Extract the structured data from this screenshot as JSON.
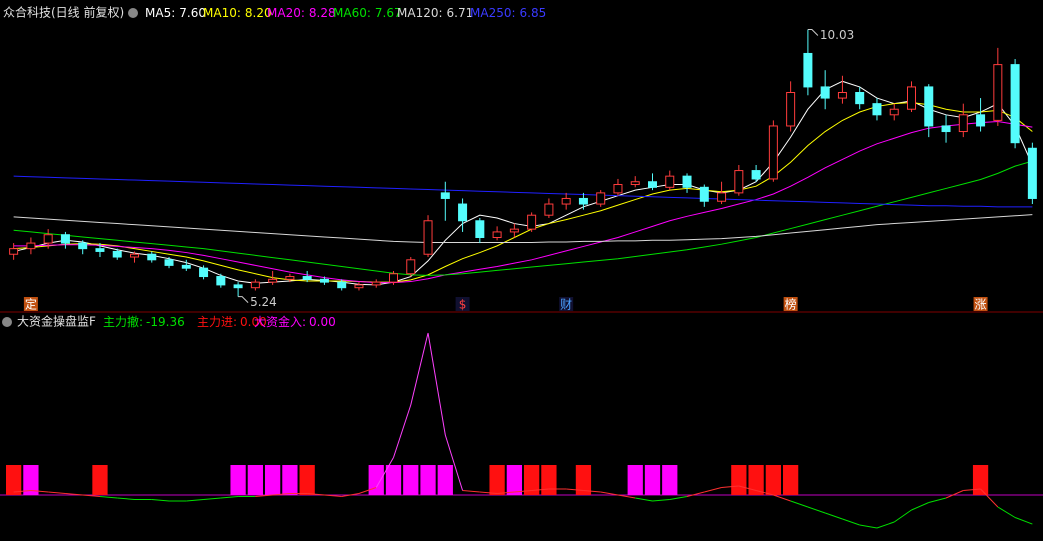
{
  "chart_data": [
    {
      "type": "candlestick",
      "title": "众合科技(日线 前复权)",
      "categories": [
        null,
        "定",
        null,
        null,
        null,
        null,
        null,
        null,
        null,
        null,
        null,
        null,
        null,
        null,
        null,
        null,
        null,
        null,
        null,
        null,
        null,
        null,
        null,
        null,
        null,
        null,
        "$",
        null,
        null,
        null,
        null,
        null,
        "财",
        null,
        null,
        null,
        null,
        null,
        null,
        null,
        null,
        null,
        null,
        null,
        null,
        "榜",
        null,
        null,
        null,
        null,
        null,
        null,
        null,
        null,
        null,
        null,
        "涨",
        null,
        null,
        null
      ],
      "open": [
        6.0,
        6.1,
        6.2,
        6.35,
        6.2,
        6.1,
        6.05,
        5.95,
        6.0,
        5.9,
        5.8,
        5.75,
        5.6,
        5.45,
        5.4,
        5.5,
        5.55,
        5.6,
        5.55,
        5.5,
        5.4,
        5.45,
        5.5,
        5.65,
        6.0,
        7.1,
        6.9,
        6.6,
        6.3,
        6.4,
        6.45,
        6.7,
        6.9,
        7.0,
        6.9,
        7.1,
        7.25,
        7.3,
        7.2,
        7.4,
        7.2,
        6.95,
        7.1,
        7.5,
        7.35,
        8.3,
        9.6,
        9.0,
        8.8,
        8.9,
        8.7,
        8.5,
        8.6,
        9.0,
        8.3,
        8.2,
        8.5,
        8.4,
        9.4,
        7.9
      ],
      "close": [
        6.1,
        6.2,
        6.35,
        6.2,
        6.1,
        6.05,
        5.95,
        6.0,
        5.9,
        5.8,
        5.75,
        5.6,
        5.45,
        5.4,
        5.5,
        5.55,
        5.6,
        5.55,
        5.5,
        5.4,
        5.45,
        5.5,
        5.65,
        5.9,
        6.6,
        7.0,
        6.6,
        6.3,
        6.4,
        6.45,
        6.7,
        6.9,
        7.0,
        6.9,
        7.1,
        7.25,
        7.3,
        7.2,
        7.4,
        7.2,
        6.95,
        7.1,
        7.5,
        7.35,
        8.3,
        8.9,
        9.0,
        8.8,
        8.9,
        8.7,
        8.5,
        8.6,
        9.0,
        8.3,
        8.2,
        8.5,
        8.3,
        9.4,
        8.0,
        7.0
      ],
      "high": [
        6.2,
        6.3,
        6.45,
        6.4,
        6.25,
        6.2,
        6.1,
        6.05,
        6.05,
        5.95,
        5.9,
        5.8,
        5.65,
        5.5,
        5.55,
        5.7,
        5.65,
        5.7,
        5.6,
        5.55,
        5.5,
        5.55,
        5.7,
        5.95,
        6.7,
        7.3,
        7.0,
        6.65,
        6.5,
        6.55,
        6.75,
        7.0,
        7.1,
        7.1,
        7.15,
        7.35,
        7.4,
        7.45,
        7.5,
        7.45,
        7.25,
        7.3,
        7.6,
        7.6,
        8.4,
        9.1,
        10.03,
        9.3,
        9.2,
        9.0,
        8.8,
        8.7,
        9.1,
        9.05,
        8.5,
        8.7,
        8.8,
        9.7,
        9.5,
        8.0
      ],
      "low": [
        5.9,
        6.0,
        6.1,
        6.1,
        6.0,
        5.95,
        5.9,
        5.85,
        5.85,
        5.75,
        5.7,
        5.55,
        5.4,
        5.24,
        5.35,
        5.45,
        5.5,
        5.5,
        5.45,
        5.35,
        5.35,
        5.4,
        5.45,
        5.6,
        5.95,
        6.6,
        6.4,
        6.2,
        6.25,
        6.3,
        6.4,
        6.65,
        6.8,
        6.8,
        6.85,
        7.05,
        7.2,
        7.15,
        7.15,
        7.1,
        6.85,
        6.9,
        7.05,
        7.3,
        7.3,
        8.2,
        8.85,
        8.6,
        8.7,
        8.6,
        8.4,
        8.4,
        8.55,
        8.1,
        8.0,
        8.1,
        8.2,
        8.3,
        7.9,
        6.9
      ],
      "up_color": "#ff3c3c",
      "down_color": "#54fcfc",
      "ylim": [
        5.0,
        10.2
      ],
      "annotations": [
        {
          "label": "10.03",
          "value": 10.03,
          "at": "high"
        },
        {
          "label": "5.24",
          "value": 5.24,
          "at": "low"
        }
      ],
      "series": [
        {
          "name": "MA5:",
          "last_label": "7.60",
          "color": "#ffffff",
          "values": [
            6.05,
            6.12,
            6.2,
            6.25,
            6.22,
            6.15,
            6.08,
            6.02,
            5.98,
            5.92,
            5.85,
            5.75,
            5.62,
            5.52,
            5.48,
            5.5,
            5.52,
            5.55,
            5.53,
            5.5,
            5.46,
            5.45,
            5.5,
            5.6,
            5.88,
            6.25,
            6.55,
            6.7,
            6.65,
            6.55,
            6.5,
            6.55,
            6.7,
            6.85,
            6.95,
            7.05,
            7.15,
            7.2,
            7.25,
            7.25,
            7.15,
            7.1,
            7.15,
            7.3,
            7.65,
            8.1,
            8.6,
            8.95,
            9.1,
            9.0,
            8.8,
            8.7,
            8.75,
            8.6,
            8.5,
            8.45,
            8.55,
            8.7,
            8.3,
            7.6
          ]
        },
        {
          "name": "MA10:",
          "last_label": "8.20",
          "color": "#ffff00",
          "values": [
            6.1,
            6.12,
            6.15,
            6.18,
            6.19,
            6.18,
            6.15,
            6.1,
            6.05,
            6.0,
            5.95,
            5.88,
            5.8,
            5.72,
            5.65,
            5.58,
            5.54,
            5.52,
            5.52,
            5.52,
            5.51,
            5.5,
            5.5,
            5.54,
            5.63,
            5.78,
            5.92,
            6.03,
            6.15,
            6.3,
            6.45,
            6.55,
            6.62,
            6.7,
            6.78,
            6.88,
            6.98,
            7.08,
            7.15,
            7.18,
            7.15,
            7.12,
            7.15,
            7.22,
            7.4,
            7.65,
            7.95,
            8.2,
            8.4,
            8.55,
            8.65,
            8.7,
            8.72,
            8.68,
            8.6,
            8.55,
            8.55,
            8.58,
            8.45,
            8.2
          ]
        },
        {
          "name": "MA20:",
          "last_label": "8.28",
          "color": "#ff00ff",
          "values": [
            6.15,
            6.15,
            6.16,
            6.17,
            6.17,
            6.16,
            6.14,
            6.12,
            6.1,
            6.07,
            6.03,
            5.98,
            5.92,
            5.86,
            5.8,
            5.74,
            5.68,
            5.63,
            5.58,
            5.54,
            5.51,
            5.49,
            5.49,
            5.51,
            5.56,
            5.63,
            5.68,
            5.73,
            5.78,
            5.84,
            5.9,
            5.98,
            6.06,
            6.14,
            6.22,
            6.3,
            6.4,
            6.5,
            6.6,
            6.68,
            6.75,
            6.82,
            6.9,
            6.98,
            7.08,
            7.22,
            7.38,
            7.55,
            7.7,
            7.85,
            7.98,
            8.08,
            8.18,
            8.26,
            8.3,
            8.33,
            8.36,
            8.38,
            8.33,
            8.28
          ]
        },
        {
          "name": "MA60:",
          "last_label": "7.67",
          "color": "#00e000",
          "values": [
            6.43,
            6.4,
            6.37,
            6.34,
            6.31,
            6.28,
            6.25,
            6.22,
            6.19,
            6.16,
            6.13,
            6.1,
            6.06,
            6.02,
            5.98,
            5.94,
            5.9,
            5.86,
            5.82,
            5.78,
            5.74,
            5.7,
            5.66,
            5.63,
            5.62,
            5.63,
            5.65,
            5.68,
            5.71,
            5.74,
            5.77,
            5.8,
            5.83,
            5.86,
            5.89,
            5.92,
            5.96,
            6.0,
            6.04,
            6.08,
            6.13,
            6.18,
            6.24,
            6.3,
            6.38,
            6.46,
            6.54,
            6.62,
            6.7,
            6.78,
            6.86,
            6.94,
            7.02,
            7.1,
            7.18,
            7.26,
            7.34,
            7.45,
            7.58,
            7.67
          ]
        },
        {
          "name": "MA120:",
          "last_label": "6.71",
          "color": "#d8d8d8",
          "values": [
            6.67,
            6.65,
            6.63,
            6.61,
            6.59,
            6.57,
            6.55,
            6.53,
            6.51,
            6.49,
            6.47,
            6.45,
            6.43,
            6.41,
            6.39,
            6.37,
            6.35,
            6.33,
            6.31,
            6.29,
            6.27,
            6.25,
            6.23,
            6.22,
            6.21,
            6.21,
            6.21,
            6.21,
            6.21,
            6.21,
            6.21,
            6.22,
            6.22,
            6.23,
            6.23,
            6.24,
            6.24,
            6.25,
            6.25,
            6.26,
            6.27,
            6.28,
            6.3,
            6.32,
            6.35,
            6.38,
            6.41,
            6.44,
            6.47,
            6.5,
            6.53,
            6.55,
            6.57,
            6.59,
            6.61,
            6.63,
            6.65,
            6.67,
            6.69,
            6.71
          ]
        },
        {
          "name": "MA250:",
          "last_label": "6.85",
          "color": "#2020ff",
          "values": [
            7.4,
            7.39,
            7.38,
            7.37,
            7.36,
            7.35,
            7.34,
            7.33,
            7.32,
            7.31,
            7.3,
            7.29,
            7.28,
            7.27,
            7.26,
            7.25,
            7.24,
            7.23,
            7.22,
            7.21,
            7.2,
            7.19,
            7.18,
            7.17,
            7.16,
            7.15,
            7.14,
            7.13,
            7.12,
            7.11,
            7.1,
            7.09,
            7.08,
            7.07,
            7.06,
            7.05,
            7.04,
            7.03,
            7.02,
            7.01,
            7.0,
            6.99,
            6.98,
            6.97,
            6.96,
            6.95,
            6.94,
            6.93,
            6.92,
            6.91,
            6.9,
            6.89,
            6.88,
            6.87,
            6.87,
            6.86,
            6.86,
            6.85,
            6.85,
            6.85
          ]
        }
      ]
    },
    {
      "type": "combo",
      "title": "大资金操盘监F",
      "ylim": [
        -30,
        110
      ],
      "series": [
        {
          "name": "主力撤:",
          "last_label": "-19.36",
          "type": "line",
          "color": "#00e000",
          "values": [
            2,
            3,
            2,
            1,
            0,
            -1,
            -2,
            -3,
            -3,
            -4,
            -4,
            -3,
            -2,
            -1,
            -1,
            0,
            1,
            1,
            0,
            -1,
            1,
            5,
            25,
            60,
            108,
            40,
            3,
            2,
            1,
            2,
            3,
            4,
            4,
            3,
            2,
            0,
            -2,
            -4,
            -3,
            -1,
            2,
            5,
            6,
            3,
            0,
            -4,
            -8,
            -12,
            -16,
            -20,
            -22,
            -18,
            -10,
            -5,
            -2,
            3,
            4,
            -8,
            -15,
            -19.36
          ]
        },
        {
          "name": "主力进:",
          "last_label": "0.00",
          "type": "bar",
          "color": "#ff1010",
          "values": [
            20,
            0,
            0,
            0,
            0,
            20,
            0,
            0,
            0,
            0,
            0,
            0,
            0,
            0,
            0,
            0,
            0,
            20,
            0,
            0,
            0,
            0,
            0,
            0,
            0,
            0,
            0,
            0,
            20,
            0,
            20,
            20,
            0,
            20,
            0,
            0,
            0,
            0,
            0,
            0,
            0,
            0,
            20,
            20,
            20,
            20,
            0,
            0,
            0,
            0,
            0,
            0,
            0,
            0,
            0,
            0,
            20,
            0,
            0,
            0
          ]
        },
        {
          "name": "大资金入:",
          "last_label": "0.00",
          "type": "bar",
          "color": "#ff00ff",
          "values": [
            0,
            20,
            0,
            0,
            0,
            0,
            0,
            0,
            0,
            0,
            0,
            0,
            0,
            20,
            20,
            20,
            20,
            0,
            0,
            0,
            0,
            20,
            20,
            20,
            20,
            20,
            0,
            0,
            0,
            20,
            0,
            0,
            0,
            0,
            0,
            0,
            20,
            20,
            20,
            0,
            0,
            0,
            0,
            0,
            0,
            0,
            0,
            0,
            0,
            0,
            0,
            0,
            0,
            0,
            0,
            0,
            0,
            0,
            0,
            0
          ]
        }
      ]
    }
  ]
}
